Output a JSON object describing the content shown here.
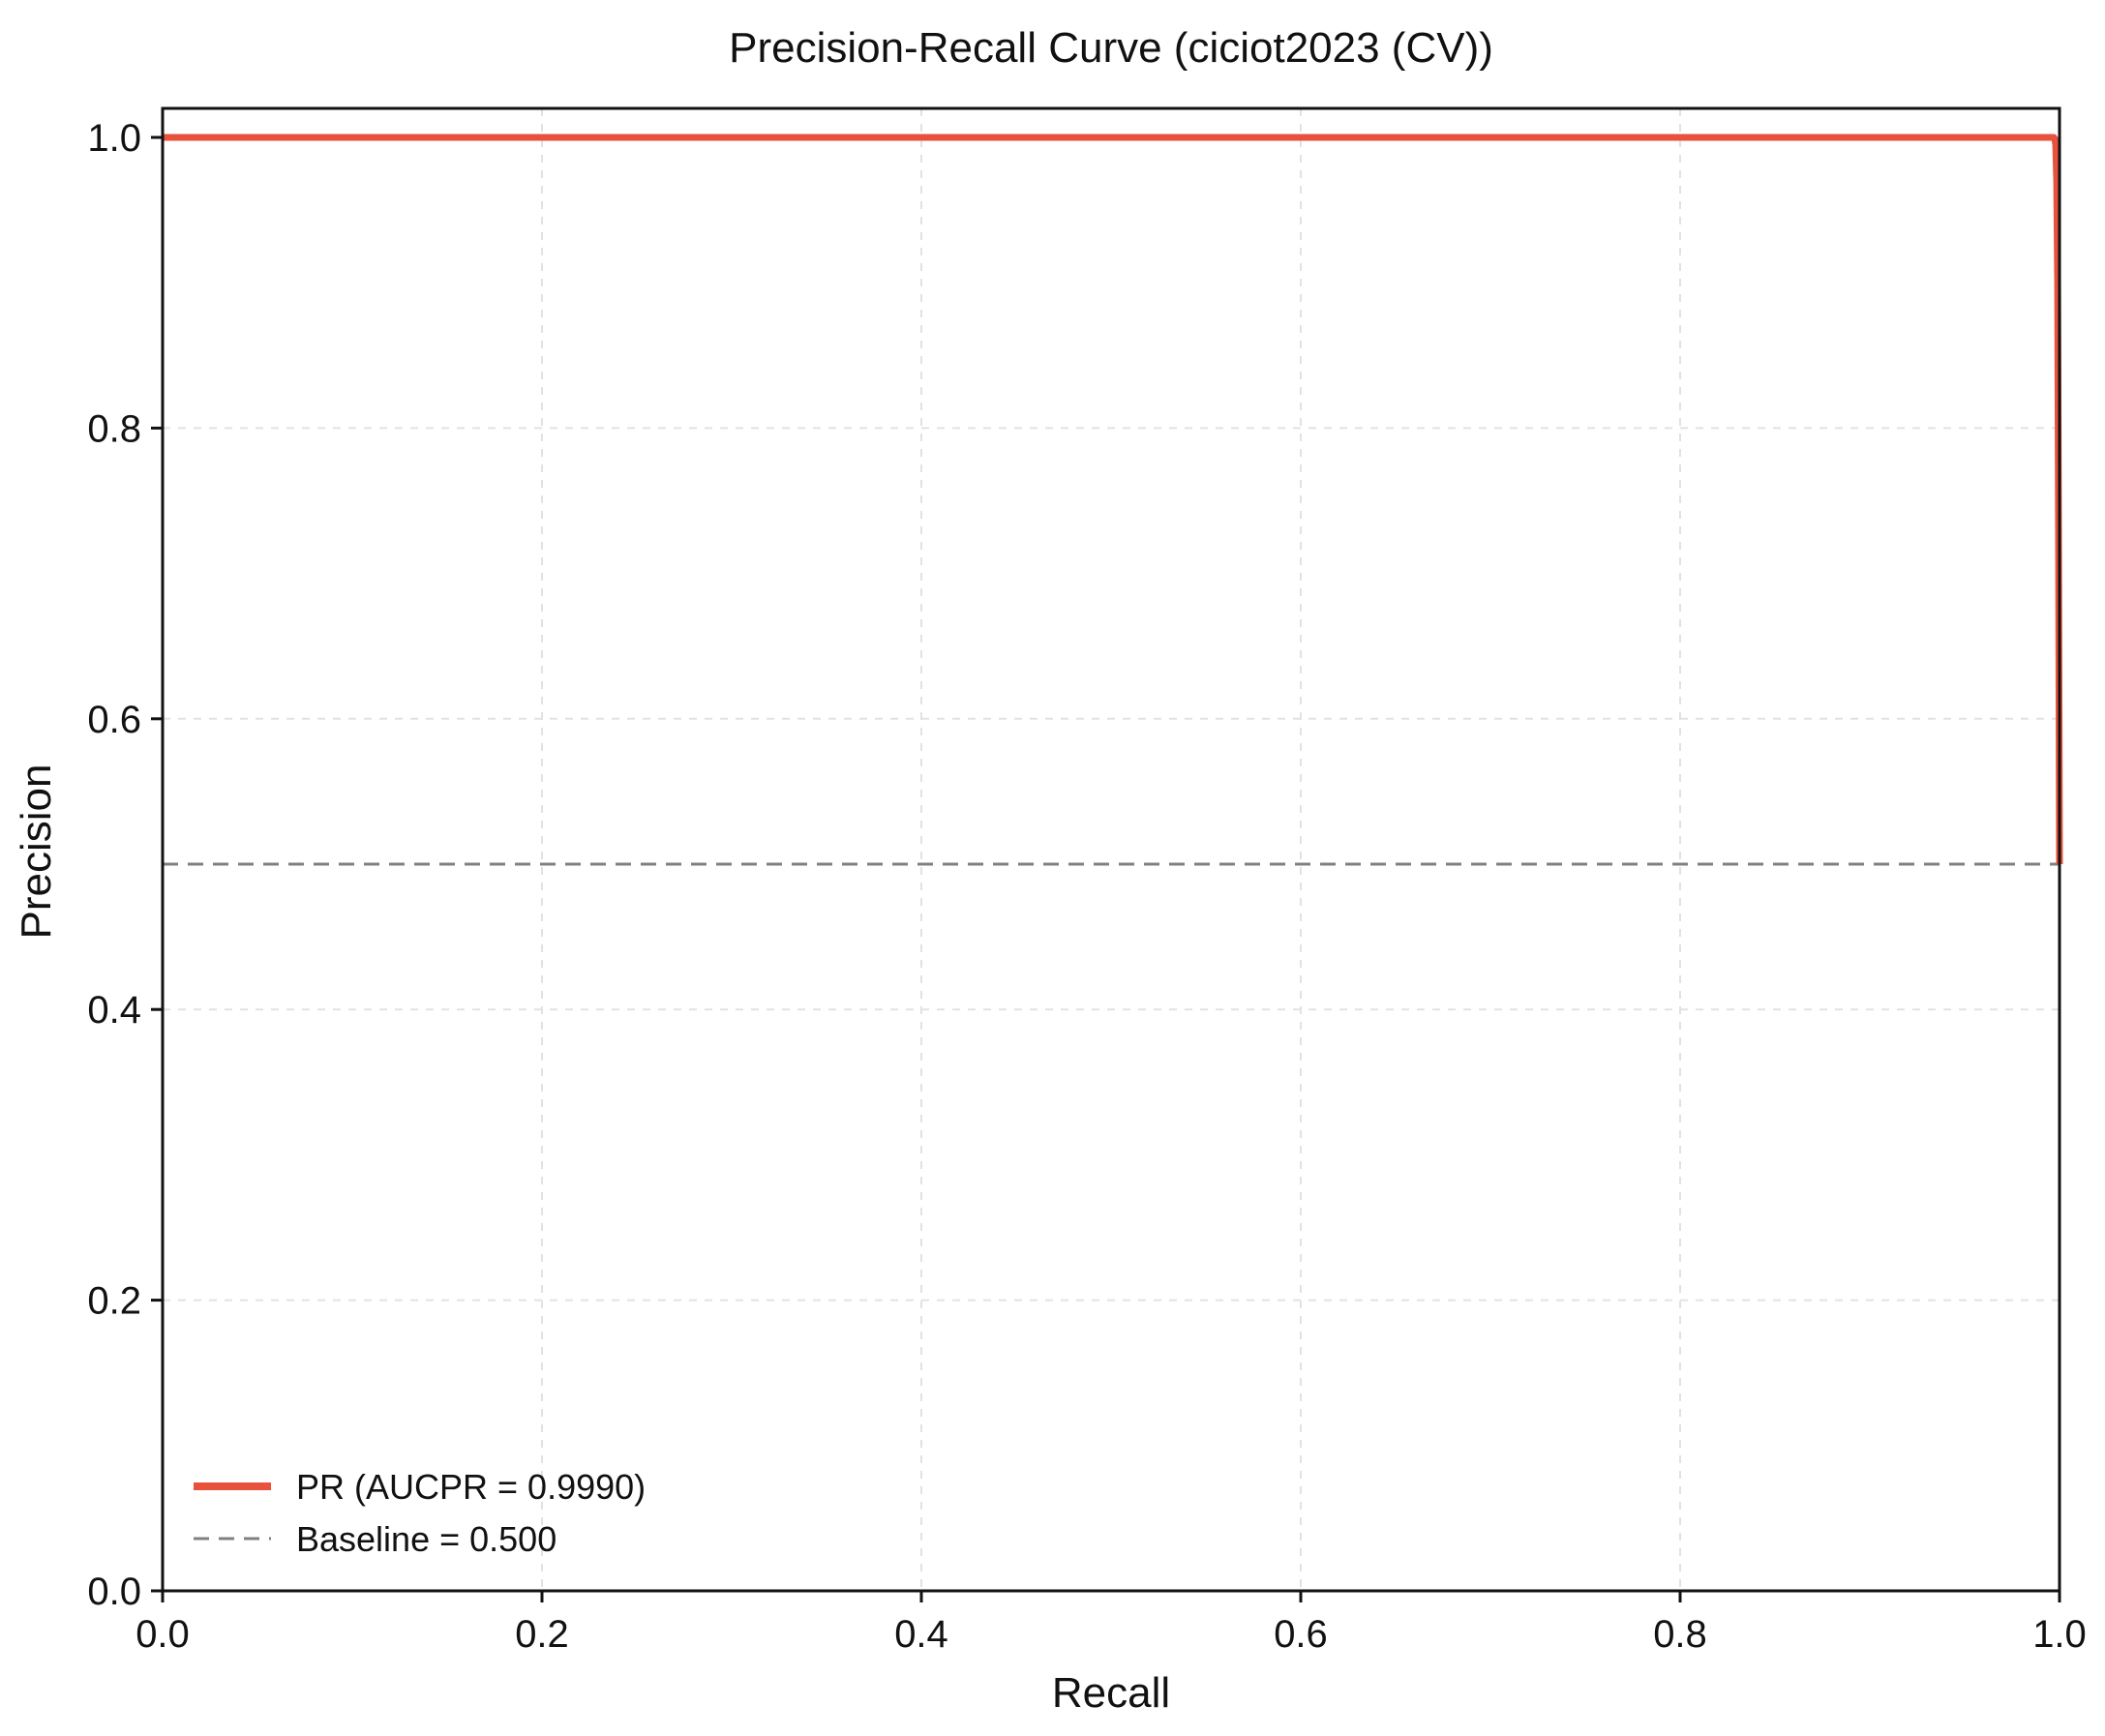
{
  "chart_data": {
    "type": "line",
    "title": "Precision-Recall Curve (ciciot2023 (CV))",
    "xlabel": "Recall",
    "ylabel": "Precision",
    "xlim": [
      0.0,
      1.0
    ],
    "ylim": [
      0.0,
      1.0
    ],
    "xticks": [
      "0.0",
      "0.2",
      "0.4",
      "0.6",
      "0.8",
      "1.0"
    ],
    "yticks": [
      "0.0",
      "0.2",
      "0.4",
      "0.6",
      "0.8",
      "1.0"
    ],
    "grid": true,
    "legend_position": "lower-left",
    "series": [
      {
        "name": "PR (AUCPR = 0.9990)",
        "color": "#e8513b",
        "style": "solid",
        "x": [
          0.0,
          0.997,
          0.9975,
          0.998,
          0.9985,
          0.999,
          0.9995,
          1.0
        ],
        "y": [
          1.0,
          1.0,
          0.999,
          0.995,
          0.97,
          0.9,
          0.72,
          0.5
        ]
      },
      {
        "name": "Baseline = 0.500",
        "color": "#808080",
        "style": "dashed",
        "x": [
          0.0,
          1.0
        ],
        "y": [
          0.5,
          0.5
        ]
      }
    ]
  }
}
